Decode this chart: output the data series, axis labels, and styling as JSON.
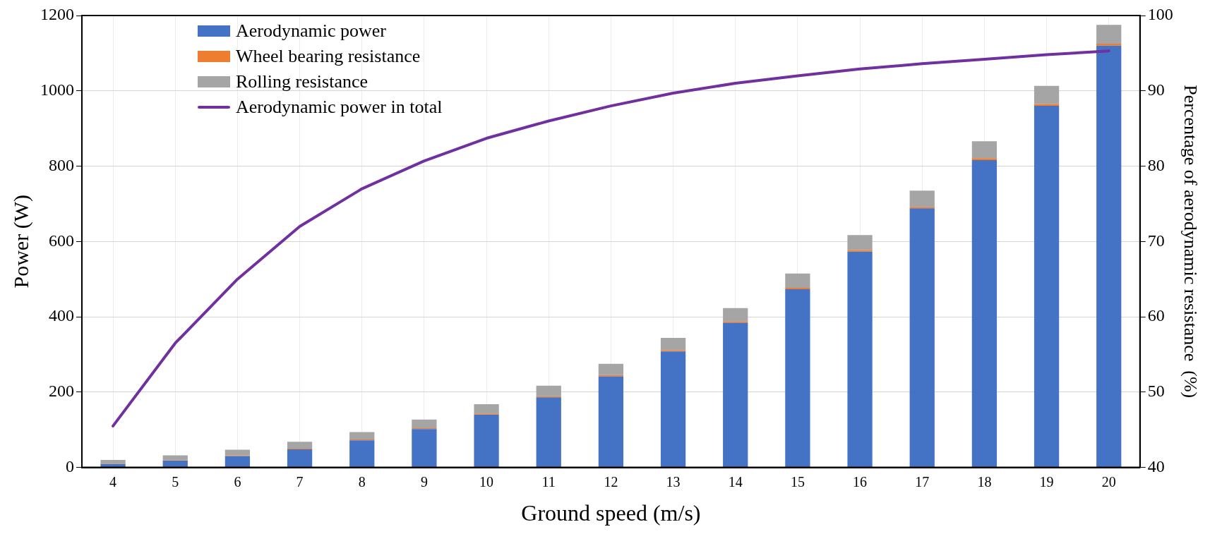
{
  "chart_data": {
    "type": "bar",
    "stacked": true,
    "xlabel": "Ground speed (m/s)",
    "ylabel": "Power (W)",
    "y2label": "Percentage of aerodynamic resistance  (%)",
    "categories": [
      "4",
      "5",
      "6",
      "7",
      "8",
      "9",
      "10",
      "11",
      "12",
      "13",
      "14",
      "15",
      "16",
      "17",
      "18",
      "19",
      "20"
    ],
    "series": [
      {
        "name": "Aerodynamic power",
        "color": "#4472c4",
        "values": [
          9,
          18,
          30,
          48,
          72,
          102,
          140,
          186,
          242,
          308,
          384,
          473,
          573,
          688,
          816,
          960,
          1120
        ]
      },
      {
        "name": "Wheel bearing resistance",
        "color": "#ed7d31",
        "values": [
          1,
          1,
          2,
          2,
          2,
          2,
          3,
          3,
          3,
          3,
          4,
          4,
          4,
          4,
          5,
          5,
          5
        ]
      },
      {
        "name": "Rolling resistance",
        "color": "#a5a5a5",
        "values": [
          10,
          13,
          15,
          18,
          20,
          23,
          25,
          28,
          30,
          33,
          35,
          38,
          40,
          43,
          45,
          48,
          50
        ]
      },
      {
        "name": "Aerodynamic power in total",
        "type": "line",
        "axis": "y2",
        "color": "#7030a0",
        "values": [
          45.5,
          56.5,
          65,
          72,
          77,
          80.7,
          83.7,
          86,
          88,
          89.7,
          91,
          92,
          92.9,
          93.6,
          94.2,
          94.8,
          95.3
        ]
      }
    ],
    "ylim": [
      0,
      1200
    ],
    "yticks": [
      0,
      200,
      400,
      600,
      800,
      1000,
      1200
    ],
    "y2lim": [
      40,
      100
    ],
    "y2ticks": [
      40,
      50,
      60,
      70,
      80,
      90,
      100
    ],
    "grid": true,
    "legend": "top left",
    "marker": "none",
    "line_style": "solid"
  }
}
